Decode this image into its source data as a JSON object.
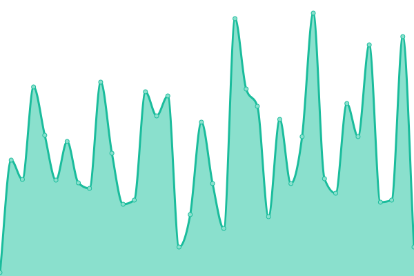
{
  "chart_data": {
    "type": "area",
    "title": "",
    "xlabel": "",
    "ylabel": "",
    "ylim": [
      0,
      400
    ],
    "grid": false,
    "legend": "none",
    "curve": "smooth",
    "colors": {
      "line": "#1abc9c",
      "fill": "#8ae0cd",
      "marker_fill": "#8ae0cd"
    },
    "series": [
      {
        "values": [
          5,
          168,
          140,
          274,
          204,
          139,
          195,
          135,
          127,
          281,
          178,
          104,
          110,
          267,
          232,
          261,
          42,
          89,
          223,
          134,
          69,
          373,
          271,
          246,
          86,
          227,
          134,
          202,
          381,
          141,
          120,
          250,
          202,
          335,
          107,
          110,
          347,
          42
        ]
      }
    ]
  }
}
